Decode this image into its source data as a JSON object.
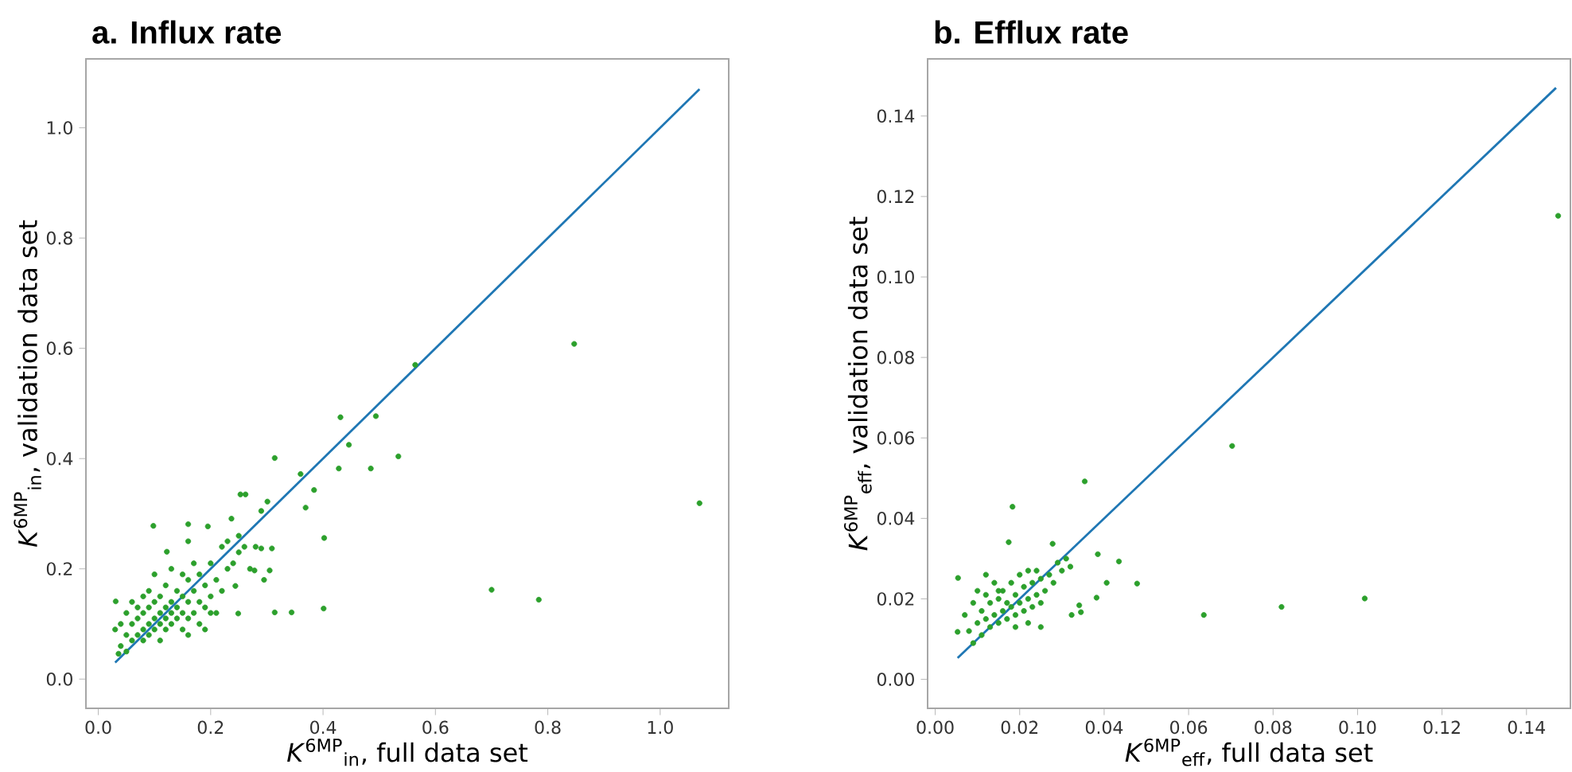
{
  "chart_data": [
    {
      "type": "scatter",
      "title": "a. Influx rate",
      "xlabel": "*K*$^{6MP}$$_{in}$, full data set",
      "ylabel": "*K*$^{6MP}$$_{in}$, validation data set",
      "grid": false,
      "xlim": [
        -0.022,
        1.122
      ],
      "ylim": [
        -0.053,
        1.125
      ],
      "xticks": [
        {
          "value": 0,
          "label": "0.0"
        },
        0.2,
        0.4,
        0.6,
        0.8,
        {
          "value": 1,
          "label": "1.0"
        }
      ],
      "yticks": [
        {
          "value": 0,
          "label": "0.0"
        },
        0.2,
        0.4,
        0.6,
        0.8,
        {
          "value": 1,
          "label": "1.0"
        }
      ],
      "series": [
        {
          "color": "#2ca02c",
          "marker": "circle",
          "x": [
            0.847,
            1.07,
            0.7,
            0.784,
            0.564,
            0.431,
            0.494,
            0.446,
            0.534,
            0.428,
            0.485,
            0.314,
            0.36,
            0.384,
            0.369,
            0.402,
            0.401,
            0.344,
            0.314,
            0.253,
            0.262,
            0.301,
            0.29,
            0.237,
            0.098,
            0.16,
            0.195,
            0.16,
            0.29,
            0.309,
            0.295,
            0.305,
            0.278,
            0.244,
            0.249,
            0.122,
            0.031,
            0.036,
            0.04,
            0.05,
            0.05,
            0.06,
            0.06,
            0.06,
            0.07,
            0.07,
            0.07,
            0.08,
            0.08,
            0.08,
            0.08,
            0.09,
            0.09,
            0.09,
            0.09,
            0.1,
            0.1,
            0.1,
            0.1,
            0.11,
            0.11,
            0.11,
            0.11,
            0.12,
            0.12,
            0.12,
            0.12,
            0.13,
            0.13,
            0.13,
            0.13,
            0.14,
            0.14,
            0.14,
            0.15,
            0.15,
            0.15,
            0.15,
            0.16,
            0.16,
            0.16,
            0.16,
            0.17,
            0.17,
            0.17,
            0.18,
            0.18,
            0.18,
            0.19,
            0.19,
            0.19,
            0.2,
            0.2,
            0.2,
            0.21,
            0.21,
            0.22,
            0.22,
            0.23,
            0.23,
            0.24,
            0.25,
            0.25,
            0.26,
            0.27,
            0.28,
            0.03,
            0.04,
            0.05
          ],
          "values": [
            0.608,
            0.319,
            0.162,
            0.144,
            0.57,
            0.475,
            0.477,
            0.425,
            0.404,
            0.382,
            0.382,
            0.401,
            0.372,
            0.343,
            0.311,
            0.256,
            0.128,
            0.121,
            0.121,
            0.335,
            0.335,
            0.322,
            0.305,
            0.291,
            0.278,
            0.281,
            0.277,
            0.25,
            0.237,
            0.237,
            0.18,
            0.197,
            0.197,
            0.169,
            0.119,
            0.231,
            0.141,
            0.046,
            0.1,
            0.08,
            0.12,
            0.07,
            0.1,
            0.14,
            0.08,
            0.11,
            0.13,
            0.07,
            0.09,
            0.12,
            0.15,
            0.08,
            0.1,
            0.13,
            0.16,
            0.09,
            0.11,
            0.14,
            0.19,
            0.07,
            0.1,
            0.12,
            0.15,
            0.09,
            0.11,
            0.13,
            0.17,
            0.1,
            0.12,
            0.14,
            0.2,
            0.11,
            0.13,
            0.16,
            0.09,
            0.12,
            0.15,
            0.19,
            0.08,
            0.11,
            0.14,
            0.18,
            0.12,
            0.16,
            0.21,
            0.1,
            0.14,
            0.19,
            0.09,
            0.13,
            0.17,
            0.12,
            0.15,
            0.21,
            0.18,
            0.12,
            0.16,
            0.24,
            0.2,
            0.25,
            0.21,
            0.26,
            0.23,
            0.24,
            0.2,
            0.24,
            0.09,
            0.06,
            0.05
          ]
        },
        {
          "type": "line",
          "marker": "none",
          "color": "#1f77b4",
          "x": [
            0.03,
            1.07
          ],
          "values": [
            0.03,
            1.07
          ]
        }
      ]
    },
    {
      "type": "scatter",
      "title": "b. Efflux rate",
      "xlabel": "*K*$^{6MP}$$_{eff}$, full data set",
      "ylabel": "*K*$^{6MP}$$_{eff}$, validation data set",
      "grid": false,
      "xlim": [
        -0.0018,
        0.1504
      ],
      "ylim": [
        -0.0072,
        0.1542
      ],
      "xticks": [
        {
          "value": 0,
          "label": "0.00"
        },
        0.02,
        0.04,
        0.06,
        0.08,
        {
          "value": 0.1,
          "label": "0.10"
        },
        0.12,
        0.14
      ],
      "yticks": [
        {
          "value": 0,
          "label": "0.00"
        },
        0.02,
        0.04,
        0.06,
        0.08,
        {
          "value": 0.1,
          "label": "0.10"
        },
        0.12,
        0.14
      ],
      "series": [
        {
          "color": "#2ca02c",
          "marker": "circle",
          "x": [
            0.1475,
            0.0703,
            0.0636,
            0.082,
            0.1017,
            0.0354,
            0.0183,
            0.0174,
            0.0278,
            0.0385,
            0.0435,
            0.0406,
            0.0478,
            0.0382,
            0.0341,
            0.0345,
            0.0323,
            0.0054,
            0.0053,
            0.007,
            0.008,
            0.009,
            0.009,
            0.01,
            0.01,
            0.011,
            0.011,
            0.012,
            0.012,
            0.013,
            0.013,
            0.014,
            0.014,
            0.015,
            0.015,
            0.016,
            0.016,
            0.017,
            0.017,
            0.018,
            0.018,
            0.019,
            0.019,
            0.02,
            0.02,
            0.021,
            0.021,
            0.022,
            0.022,
            0.023,
            0.023,
            0.024,
            0.024,
            0.025,
            0.025,
            0.026,
            0.027,
            0.028,
            0.029,
            0.03,
            0.031,
            0.032,
            0.012,
            0.015,
            0.019,
            0.022,
            0.025
          ],
          "values": [
            0.1152,
            0.058,
            0.016,
            0.018,
            0.0201,
            0.0492,
            0.0429,
            0.0341,
            0.0337,
            0.0311,
            0.0293,
            0.024,
            0.0238,
            0.0203,
            0.0184,
            0.0167,
            0.016,
            0.0252,
            0.0118,
            0.016,
            0.012,
            0.009,
            0.019,
            0.014,
            0.022,
            0.011,
            0.017,
            0.015,
            0.021,
            0.013,
            0.019,
            0.016,
            0.024,
            0.014,
            0.02,
            0.017,
            0.022,
            0.015,
            0.019,
            0.018,
            0.024,
            0.016,
            0.021,
            0.019,
            0.026,
            0.017,
            0.023,
            0.02,
            0.027,
            0.018,
            0.024,
            0.021,
            0.027,
            0.019,
            0.025,
            0.022,
            0.026,
            0.024,
            0.029,
            0.027,
            0.03,
            0.028,
            0.026,
            0.022,
            0.013,
            0.014,
            0.013
          ]
        },
        {
          "type": "line",
          "marker": "none",
          "color": "#1f77b4",
          "x": [
            0.0053,
            0.147
          ],
          "values": [
            0.0053,
            0.147
          ]
        }
      ]
    }
  ]
}
